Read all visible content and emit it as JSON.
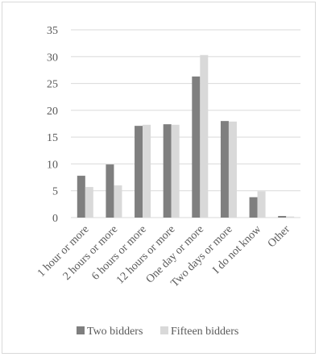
{
  "chart_data": {
    "type": "bar",
    "categories": [
      "1 hour or more",
      "2 hours or more",
      "6 hours or more",
      "12 hours or more",
      "One day or more",
      "Two days or more",
      "I do not know",
      "Other"
    ],
    "series": [
      {
        "name": "Two bidders",
        "color": "#7f7f7f",
        "values": [
          7.8,
          9.9,
          17.1,
          17.4,
          26.3,
          18.0,
          3.8,
          0.3
        ]
      },
      {
        "name": "Fifteen bidders",
        "color": "#d9d9d9",
        "values": [
          5.7,
          6.0,
          17.3,
          17.3,
          30.3,
          17.9,
          4.9,
          0.2
        ]
      }
    ],
    "ylim": [
      0,
      35
    ],
    "yticks": [
      0,
      5,
      10,
      15,
      20,
      25,
      30,
      35
    ],
    "grid": true,
    "legend": "bottom",
    "title": "",
    "xlabel": "",
    "ylabel": ""
  }
}
